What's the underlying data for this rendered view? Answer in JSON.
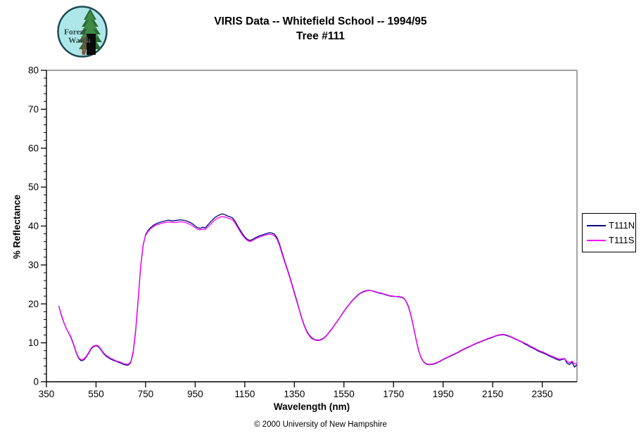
{
  "header": {
    "title_line1": "VIRIS Data -- Whitefield School -- 1994/95",
    "title_line2": "Tree #111",
    "logo": {
      "text_line1": "Forest",
      "text_line2": "Watch"
    }
  },
  "footer": {
    "copyright": "© 2000 University of New Hampshire"
  },
  "colors": {
    "series_n": "#000080",
    "series_s": "#ff00ff",
    "axis": "#000000",
    "frame": "#808080",
    "logo_bg": "#aee7e9",
    "logo_ring": "#1e4a52",
    "logo_tree": "#2d6b33",
    "logo_trunk": "#0a0a0a",
    "logo_figure": "#7a5236",
    "logo_text": "#2f4f4f"
  },
  "chart_data": {
    "type": "line",
    "title": "VIRIS Data -- Whitefield School -- 1994/95  Tree #111",
    "xlabel": "Wavelength (nm)",
    "ylabel": "% Reflectance",
    "xlim": [
      350,
      2490
    ],
    "ylim": [
      0,
      80
    ],
    "xticks": [
      350,
      550,
      750,
      950,
      1150,
      1350,
      1550,
      1750,
      1950,
      2150,
      2350
    ],
    "yticks": [
      0,
      10,
      20,
      30,
      40,
      50,
      60,
      70,
      80
    ],
    "y_minor_step": 2,
    "grid": false,
    "legend_position": "right-outside",
    "x_start": 400,
    "x_step": 10,
    "series": [
      {
        "name": "T111N",
        "color": "#000080",
        "values": [
          19.5,
          17.1,
          15.2,
          13.7,
          12.5,
          11.2,
          9.4,
          7.5,
          6.0,
          5.4,
          5.6,
          6.3,
          7.3,
          8.4,
          9.0,
          9.3,
          9.0,
          8.2,
          7.3,
          6.6,
          6.2,
          5.8,
          5.5,
          5.3,
          5.0,
          4.8,
          4.5,
          4.3,
          4.3,
          4.9,
          7.5,
          13.0,
          21.0,
          29.5,
          35.0,
          37.8,
          38.9,
          39.6,
          40.1,
          40.5,
          40.8,
          41.0,
          41.2,
          41.3,
          41.5,
          41.4,
          41.3,
          41.4,
          41.5,
          41.6,
          41.5,
          41.4,
          41.2,
          40.9,
          40.5,
          40.0,
          39.6,
          39.4,
          39.7,
          39.5,
          40.2,
          40.9,
          41.6,
          42.2,
          42.6,
          42.9,
          43.1,
          42.9,
          42.6,
          42.4,
          42.1,
          41.3,
          40.2,
          39.1,
          38.1,
          37.2,
          36.6,
          36.3,
          36.5,
          36.9,
          37.2,
          37.5,
          37.7,
          37.9,
          38.1,
          38.3,
          38.2,
          37.9,
          37.0,
          35.4,
          33.3,
          31.2,
          29.3,
          27.3,
          25.2,
          23.0,
          20.8,
          18.5,
          16.4,
          14.5,
          13.0,
          12.0,
          11.3,
          10.9,
          10.7,
          10.7,
          10.9,
          11.3,
          11.9,
          12.7,
          13.5,
          14.4,
          15.3,
          16.2,
          17.2,
          18.1,
          19.0,
          19.8,
          20.6,
          21.3,
          21.9,
          22.5,
          22.9,
          23.2,
          23.4,
          23.5,
          23.4,
          23.2,
          23.0,
          22.8,
          22.7,
          22.5,
          22.3,
          22.1,
          22.0,
          21.9,
          21.9,
          21.8,
          21.7,
          21.5,
          20.7,
          19.3,
          17.1,
          14.2,
          11.1,
          8.3,
          6.3,
          5.2,
          4.6,
          4.4,
          4.4,
          4.5,
          4.7,
          5.0,
          5.3,
          5.7,
          6.0,
          6.3,
          6.6,
          6.9,
          7.2,
          7.5,
          7.9,
          8.2,
          8.5,
          8.8,
          9.1,
          9.4,
          9.7,
          10.0,
          10.2,
          10.5,
          10.7,
          11.0,
          11.2,
          11.4,
          11.7,
          11.9,
          12.0,
          12.1,
          12.0,
          11.8,
          11.6,
          11.3,
          11.0,
          10.7,
          10.4,
          10.1,
          9.7,
          9.4,
          9.0,
          8.7,
          8.4,
          8.0,
          7.7,
          7.5,
          7.2,
          6.9,
          6.6,
          6.3,
          6.0,
          5.7,
          5.5,
          5.7,
          5.9,
          4.8,
          4.4,
          5.0,
          3.8,
          4.4
        ]
      },
      {
        "name": "T111S",
        "color": "#ff00ff",
        "values": [
          19.4,
          17.3,
          15.3,
          13.6,
          12.6,
          11.4,
          9.6,
          7.7,
          6.2,
          5.6,
          5.8,
          6.5,
          7.5,
          8.6,
          9.2,
          9.4,
          9.2,
          8.4,
          7.5,
          6.8,
          6.4,
          6.0,
          5.7,
          5.4,
          5.2,
          5.0,
          4.7,
          4.5,
          4.5,
          5.1,
          7.8,
          13.4,
          21.4,
          29.8,
          35.2,
          37.6,
          38.6,
          39.3,
          39.8,
          40.2,
          40.4,
          40.6,
          40.8,
          40.9,
          41.0,
          41.0,
          40.9,
          40.9,
          41.0,
          41.1,
          41.0,
          40.9,
          40.7,
          40.4,
          40.0,
          39.6,
          39.2,
          39.0,
          39.2,
          39.1,
          39.7,
          40.3,
          41.0,
          41.6,
          42.0,
          42.3,
          42.4,
          42.3,
          42.1,
          41.9,
          41.6,
          40.8,
          39.8,
          38.7,
          37.7,
          36.9,
          36.3,
          36.0,
          36.2,
          36.6,
          36.9,
          37.2,
          37.4,
          37.6,
          37.8,
          37.9,
          37.8,
          37.5,
          36.6,
          35.0,
          32.9,
          30.9,
          29.0,
          27.0,
          24.9,
          22.7,
          20.5,
          18.3,
          16.2,
          14.3,
          12.8,
          11.8,
          11.1,
          10.8,
          10.6,
          10.6,
          10.8,
          11.2,
          11.8,
          12.6,
          13.4,
          14.3,
          15.2,
          16.1,
          17.1,
          18.0,
          18.9,
          19.7,
          20.5,
          21.2,
          21.8,
          22.4,
          22.8,
          23.1,
          23.3,
          23.4,
          23.4,
          23.3,
          23.1,
          22.9,
          22.8,
          22.6,
          22.4,
          22.2,
          22.1,
          22.0,
          21.9,
          21.9,
          21.8,
          21.6,
          20.8,
          19.5,
          17.3,
          14.4,
          11.3,
          8.5,
          6.4,
          5.3,
          4.7,
          4.5,
          4.5,
          4.6,
          4.8,
          5.1,
          5.4,
          5.8,
          6.1,
          6.4,
          6.7,
          7.0,
          7.3,
          7.6,
          8.0,
          8.3,
          8.6,
          8.9,
          9.2,
          9.5,
          9.8,
          10.1,
          10.3,
          10.6,
          10.8,
          11.1,
          11.3,
          11.5,
          11.8,
          12.0,
          12.1,
          12.2,
          12.1,
          11.9,
          11.7,
          11.4,
          11.1,
          10.8,
          10.5,
          10.2,
          9.9,
          9.6,
          9.2,
          8.9,
          8.6,
          8.2,
          7.9,
          7.7,
          7.4,
          7.1,
          6.8,
          6.5,
          6.3,
          6.0,
          5.8,
          5.9,
          6.0,
          5.2,
          4.9,
          5.3,
          4.6,
          4.8
        ]
      }
    ]
  }
}
